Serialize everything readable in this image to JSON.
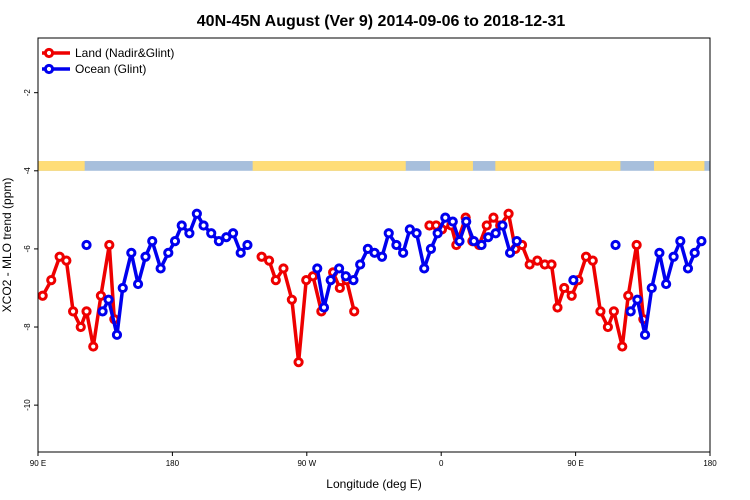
{
  "chart_data": {
    "type": "line",
    "title": "40N-45N August (Ver 9)   2014-09-06 to 2018-12-31",
    "xlabel": "Longitude (deg E)",
    "ylabel": "XCO2 - MLO trend (ppm)",
    "xlim": [
      90,
      450
    ],
    "ylim": [
      -11.2,
      -0.6
    ],
    "x_ticks": [
      {
        "value": 90,
        "label": "90 E"
      },
      {
        "value": 162,
        "label": "180"
      },
      {
        "value": 234,
        "label": "90 W"
      },
      {
        "value": 306,
        "label": "0"
      },
      {
        "value": 378,
        "label": "90 E"
      },
      {
        "value": 450,
        "label": "180"
      }
    ],
    "y_ticks": [
      {
        "value": -2,
        "label": "-2"
      },
      {
        "value": -4,
        "label": "-4"
      },
      {
        "value": -6,
        "label": "-6"
      },
      {
        "value": -8,
        "label": "-8"
      },
      {
        "value": -10,
        "label": "-10"
      }
    ],
    "land_strip": {
      "y_top": -3.75,
      "y_bottom": -4.0,
      "land_color": "#ffdd77",
      "ocean_color": "#a7bfdc",
      "land_intervals": [
        [
          90,
          115
        ],
        [
          205,
          287
        ],
        [
          300,
          323
        ],
        [
          335,
          402
        ],
        [
          420,
          447
        ]
      ]
    },
    "legend": {
      "position": "top-left",
      "entries": [
        {
          "label": "Land (Nadir&Glint)",
          "color": "#ee0000"
        },
        {
          "label": "Ocean (Glint)",
          "color": "#0000ee"
        }
      ]
    },
    "series": [
      {
        "name": "Land (Nadir&Glint)",
        "color": "#ee0000",
        "segments": [
          [
            [
              92.5,
              -7.2
            ],
            [
              97.1,
              -6.8
            ],
            [
              101.6,
              -6.2
            ],
            [
              105.2,
              -6.3
            ],
            [
              108.8,
              -7.6
            ],
            [
              112.9,
              -8.0
            ],
            [
              116.0,
              -7.6
            ],
            [
              119.6,
              -8.5
            ],
            [
              123.7,
              -7.2
            ],
            [
              128.2,
              -5.9
            ],
            [
              130.9,
              -7.8
            ]
          ],
          [
            [
              209.8,
              -6.2
            ],
            [
              213.8,
              -6.3
            ],
            [
              217.4,
              -6.8
            ],
            [
              221.5,
              -6.5
            ],
            [
              226.0,
              -7.3
            ],
            [
              229.6,
              -8.9
            ],
            [
              233.7,
              -6.8
            ],
            [
              237.3,
              -6.7
            ],
            [
              241.8,
              -7.6
            ]
          ],
          [
            [
              248.1,
              -6.6
            ],
            [
              251.7,
              -7.0
            ],
            [
              255.3,
              -6.8
            ],
            [
              259.4,
              -7.6
            ]
          ],
          [
            [
              299.7,
              -5.4
            ],
            [
              303.3,
              -5.4
            ],
            [
              306.4,
              -5.5
            ],
            [
              311.4,
              -5.4
            ],
            [
              314.1,
              -5.9
            ],
            [
              319.1,
              -5.2
            ],
            [
              322.7,
              -5.8
            ],
            [
              326.3,
              -5.9
            ],
            [
              330.4,
              -5.4
            ],
            [
              334.0,
              -5.2
            ],
            [
              337.6,
              -5.4
            ],
            [
              342.1,
              -5.1
            ],
            [
              345.7,
              -6.0
            ],
            [
              349.3,
              -5.9
            ],
            [
              353.4,
              -6.4
            ],
            [
              357.5,
              -6.3
            ],
            [
              361.5,
              -6.4
            ],
            [
              365.1,
              -6.4
            ],
            [
              368.3,
              -7.5
            ],
            [
              371.9,
              -7.0
            ],
            [
              375.9,
              -7.2
            ],
            [
              379.5,
              -6.8
            ],
            [
              383.6,
              -6.2
            ],
            [
              387.2,
              -6.3
            ],
            [
              391.3,
              -7.6
            ],
            [
              395.3,
              -8.0
            ],
            [
              398.5,
              -7.6
            ],
            [
              403.0,
              -8.5
            ],
            [
              406.2,
              -7.2
            ],
            [
              410.7,
              -5.9
            ],
            [
              414.3,
              -7.8
            ]
          ]
        ]
      },
      {
        "name": "Ocean (Glint)",
        "color": "#0000ee",
        "segments": [
          [
            [
              116.0,
              -5.9
            ]
          ],
          [
            [
              124.6,
              -7.6
            ],
            [
              127.8,
              -7.3
            ],
            [
              132.3,
              -8.2
            ],
            [
              135.4,
              -7.0
            ],
            [
              140.0,
              -6.1
            ],
            [
              143.6,
              -6.9
            ],
            [
              147.6,
              -6.2
            ],
            [
              151.2,
              -5.8
            ],
            [
              155.7,
              -6.5
            ],
            [
              159.8,
              -6.1
            ],
            [
              163.4,
              -5.8
            ],
            [
              167.0,
              -5.4
            ],
            [
              171.1,
              -5.6
            ],
            [
              175.1,
              -5.1
            ],
            [
              178.7,
              -5.4
            ],
            [
              182.8,
              -5.6
            ],
            [
              186.9,
              -5.8
            ],
            [
              190.9,
              -5.7
            ],
            [
              194.5,
              -5.6
            ],
            [
              198.6,
              -6.1
            ],
            [
              202.2,
              -5.9
            ]
          ],
          [
            [
              239.6,
              -6.5
            ],
            [
              243.2,
              -7.5
            ],
            [
              246.8,
              -6.8
            ],
            [
              251.3,
              -6.5
            ],
            [
              254.9,
              -6.7
            ],
            [
              259.0,
              -6.8
            ],
            [
              262.6,
              -6.4
            ],
            [
              266.7,
              -6.0
            ],
            [
              270.3,
              -6.1
            ],
            [
              274.3,
              -6.2
            ],
            [
              277.9,
              -5.6
            ],
            [
              282.0,
              -5.9
            ],
            [
              285.6,
              -6.1
            ],
            [
              289.2,
              -5.5
            ],
            [
              292.8,
              -5.6
            ],
            [
              296.9,
              -6.5
            ],
            [
              300.5,
              -6.0
            ],
            [
              304.1,
              -5.6
            ],
            [
              308.2,
              -5.2
            ],
            [
              312.2,
              -5.3
            ],
            [
              315.8,
              -5.8
            ],
            [
              319.4,
              -5.3
            ],
            [
              323.5,
              -5.8
            ],
            [
              327.6,
              -5.9
            ],
            [
              331.2,
              -5.7
            ],
            [
              335.2,
              -5.6
            ],
            [
              338.8,
              -5.4
            ],
            [
              342.9,
              -6.1
            ],
            [
              346.5,
              -5.8
            ]
          ],
          [
            [
              376.8,
              -6.8
            ]
          ],
          [
            [
              399.4,
              -5.9
            ]
          ],
          [
            [
              407.5,
              -7.6
            ],
            [
              411.1,
              -7.3
            ],
            [
              415.2,
              -8.2
            ],
            [
              418.8,
              -7.0
            ],
            [
              422.9,
              -6.1
            ],
            [
              426.5,
              -6.9
            ],
            [
              430.5,
              -6.2
            ],
            [
              434.1,
              -5.8
            ],
            [
              438.2,
              -6.5
            ],
            [
              441.8,
              -6.1
            ],
            [
              445.4,
              -5.8
            ]
          ]
        ]
      }
    ]
  }
}
